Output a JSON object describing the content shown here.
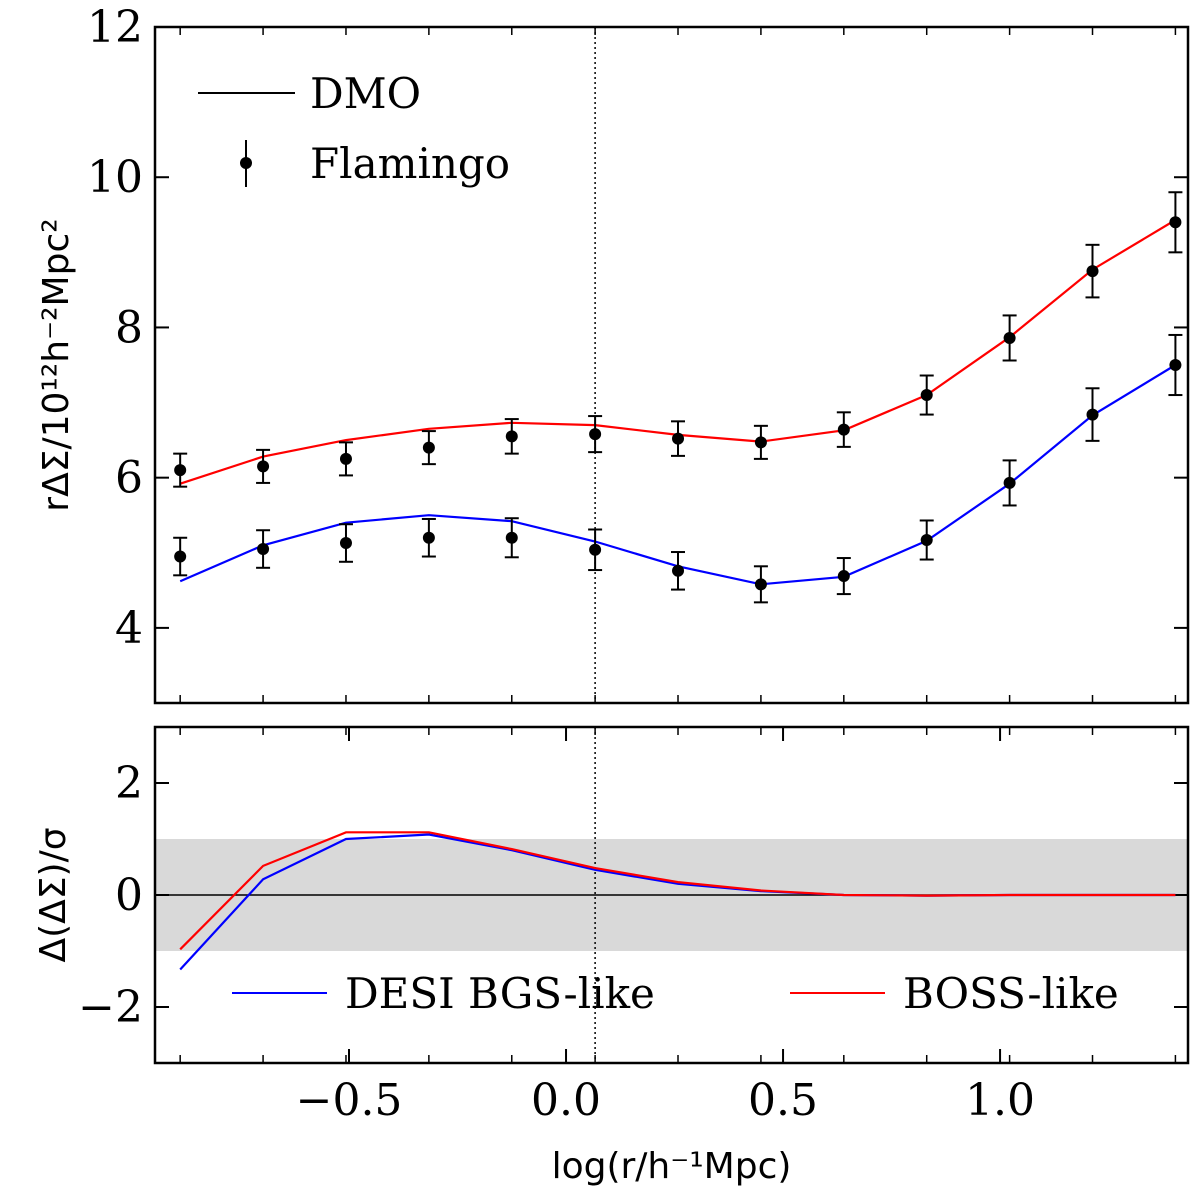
{
  "chart_data": [
    {
      "type": "line",
      "ylabel": "rΔΣ/10¹²h⁻²Mpc²",
      "x": [
        -0.889,
        -0.698,
        -0.507,
        -0.316,
        -0.125,
        0.067,
        0.258,
        0.449,
        0.64,
        0.831,
        1.022,
        1.213,
        1.404
      ],
      "xlim": [
        -0.947,
        1.433
      ],
      "ylim": [
        3,
        12
      ],
      "yticks": [
        4,
        6,
        8,
        10,
        12
      ],
      "vline": 0.067,
      "legend": [
        {
          "name": "DMO",
          "color": "#000000"
        },
        {
          "name": "Flamingo",
          "color": "#000000"
        }
      ],
      "series": [
        {
          "color": "#ff0000",
          "dmo": [
            5.92,
            6.28,
            6.5,
            6.65,
            6.73,
            6.7,
            6.57,
            6.48,
            6.63,
            7.1,
            7.87,
            8.77,
            9.43
          ],
          "flamingo": [
            6.1,
            6.15,
            6.25,
            6.4,
            6.55,
            6.58,
            6.52,
            6.47,
            6.64,
            7.1,
            7.86,
            8.75,
            9.4
          ],
          "errors": [
            0.22,
            0.22,
            0.22,
            0.22,
            0.23,
            0.24,
            0.23,
            0.22,
            0.23,
            0.26,
            0.3,
            0.35,
            0.4
          ]
        },
        {
          "color": "#0000ff",
          "dmo": [
            4.62,
            5.1,
            5.4,
            5.5,
            5.42,
            5.15,
            4.82,
            4.58,
            4.68,
            5.16,
            5.92,
            6.83,
            7.5
          ],
          "flamingo": [
            4.95,
            5.05,
            5.13,
            5.2,
            5.2,
            5.04,
            4.76,
            4.58,
            4.69,
            5.17,
            5.93,
            6.84,
            7.5
          ],
          "errors": [
            0.25,
            0.25,
            0.25,
            0.25,
            0.26,
            0.27,
            0.25,
            0.24,
            0.24,
            0.26,
            0.3,
            0.35,
            0.4
          ]
        }
      ]
    },
    {
      "type": "line",
      "ylabel": "Δ(ΔΣ)/σ",
      "xlabel": "log(r/h⁻¹Mpc)",
      "x": [
        -0.889,
        -0.698,
        -0.507,
        -0.316,
        -0.125,
        0.067,
        0.258,
        0.449,
        0.64,
        0.831,
        1.022,
        1.213,
        1.404
      ],
      "xlim": [
        -0.947,
        1.433
      ],
      "ylim": [
        -3,
        3
      ],
      "xticks": [
        {
          "value": -0.5,
          "label": "−0.5"
        },
        {
          "value": 0,
          "label": "0.0"
        },
        0.5,
        {
          "value": 1,
          "label": "1.0"
        }
      ],
      "yticks": [
        {
          "value": -2,
          "label": "−2"
        },
        0,
        2
      ],
      "vline": 0.067,
      "band": [
        -1,
        1
      ],
      "hline": 0,
      "series": [
        {
          "name": "DESI BGS-like",
          "color": "#0000ff",
          "values": [
            -1.33,
            0.28,
            1.0,
            1.08,
            0.8,
            0.45,
            0.2,
            0.07,
            0.0,
            -0.01,
            0,
            0,
            0
          ]
        },
        {
          "name": "BOSS-like",
          "color": "#ff0000",
          "values": [
            -0.97,
            0.52,
            1.12,
            1.12,
            0.82,
            0.48,
            0.23,
            0.08,
            0.0,
            -0.01,
            0,
            0,
            0
          ]
        }
      ]
    }
  ]
}
